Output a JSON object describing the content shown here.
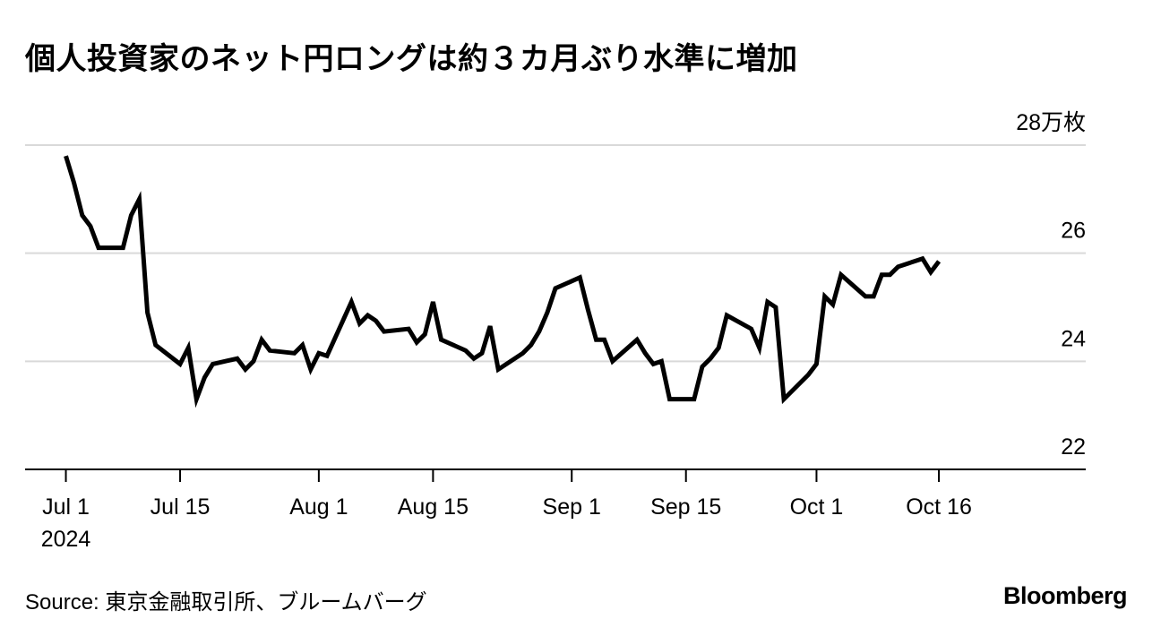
{
  "title": "個人投資家のネット円ロングは約３カ月ぶり水準に増加",
  "source": "Source: 東京金融取引所、ブルームバーグ",
  "logo": "Bloomberg",
  "colors": {
    "line": "#000000",
    "grid": "#d9d9d9",
    "axis": "#000000",
    "background": "#ffffff"
  },
  "chart_data": {
    "type": "line",
    "title": "個人投資家のネット円ロングは約３カ月ぶり水準に増加",
    "xlabel": "",
    "ylabel": "",
    "y_unit": "万枚",
    "ylim": [
      22,
      28
    ],
    "xlim": [
      "2024-06-26",
      "2024-11-03"
    ],
    "grid": "horizontal",
    "y_axis_position": "right",
    "legend": "none",
    "y_ticks": [
      {
        "value": 28,
        "label": "28万枚"
      },
      {
        "value": 26,
        "label": "26"
      },
      {
        "value": 24,
        "label": "24"
      },
      {
        "value": 22,
        "label": "22"
      }
    ],
    "x_ticks": [
      {
        "date": "2024-07-01",
        "label": "Jul 1",
        "sublabel": "2024"
      },
      {
        "date": "2024-07-15",
        "label": "Jul 15",
        "sublabel": ""
      },
      {
        "date": "2024-08-01",
        "label": "Aug 1",
        "sublabel": ""
      },
      {
        "date": "2024-08-15",
        "label": "Aug 15",
        "sublabel": ""
      },
      {
        "date": "2024-09-01",
        "label": "Sep 1",
        "sublabel": ""
      },
      {
        "date": "2024-09-15",
        "label": "Sep 15",
        "sublabel": ""
      },
      {
        "date": "2024-10-01",
        "label": "Oct 1",
        "sublabel": ""
      },
      {
        "date": "2024-10-16",
        "label": "Oct 16",
        "sublabel": ""
      }
    ],
    "series": [
      {
        "points": [
          [
            "2024-07-01",
            27.8
          ],
          [
            "2024-07-02",
            27.3
          ],
          [
            "2024-07-03",
            26.7
          ],
          [
            "2024-07-04",
            26.5
          ],
          [
            "2024-07-05",
            26.1
          ],
          [
            "2024-07-08",
            26.1
          ],
          [
            "2024-07-09",
            26.7
          ],
          [
            "2024-07-10",
            27.0
          ],
          [
            "2024-07-11",
            24.9
          ],
          [
            "2024-07-12",
            24.3
          ],
          [
            "2024-07-15",
            23.95
          ],
          [
            "2024-07-16",
            24.25
          ],
          [
            "2024-07-17",
            23.3
          ],
          [
            "2024-07-18",
            23.7
          ],
          [
            "2024-07-19",
            23.95
          ],
          [
            "2024-07-22",
            24.05
          ],
          [
            "2024-07-23",
            23.85
          ],
          [
            "2024-07-24",
            24.0
          ],
          [
            "2024-07-25",
            24.4
          ],
          [
            "2024-07-26",
            24.2
          ],
          [
            "2024-07-29",
            24.15
          ],
          [
            "2024-07-30",
            24.3
          ],
          [
            "2024-07-31",
            23.85
          ],
          [
            "2024-08-01",
            24.15
          ],
          [
            "2024-08-02",
            24.1
          ],
          [
            "2024-08-05",
            25.1
          ],
          [
            "2024-08-06",
            24.7
          ],
          [
            "2024-08-07",
            24.85
          ],
          [
            "2024-08-08",
            24.75
          ],
          [
            "2024-08-09",
            24.55
          ],
          [
            "2024-08-12",
            24.6
          ],
          [
            "2024-08-13",
            24.35
          ],
          [
            "2024-08-14",
            24.5
          ],
          [
            "2024-08-15",
            25.1
          ],
          [
            "2024-08-16",
            24.4
          ],
          [
            "2024-08-19",
            24.2
          ],
          [
            "2024-08-20",
            24.05
          ],
          [
            "2024-08-21",
            24.15
          ],
          [
            "2024-08-22",
            24.65
          ],
          [
            "2024-08-23",
            23.85
          ],
          [
            "2024-08-26",
            24.15
          ],
          [
            "2024-08-27",
            24.3
          ],
          [
            "2024-08-28",
            24.55
          ],
          [
            "2024-08-29",
            24.9
          ],
          [
            "2024-08-30",
            25.35
          ],
          [
            "2024-09-02",
            25.55
          ],
          [
            "2024-09-03",
            24.95
          ],
          [
            "2024-09-04",
            24.4
          ],
          [
            "2024-09-05",
            24.4
          ],
          [
            "2024-09-06",
            24.0
          ],
          [
            "2024-09-09",
            24.4
          ],
          [
            "2024-09-10",
            24.15
          ],
          [
            "2024-09-11",
            23.95
          ],
          [
            "2024-09-12",
            24.0
          ],
          [
            "2024-09-13",
            23.3
          ],
          [
            "2024-09-16",
            23.3
          ],
          [
            "2024-09-17",
            23.9
          ],
          [
            "2024-09-18",
            24.05
          ],
          [
            "2024-09-19",
            24.25
          ],
          [
            "2024-09-20",
            24.85
          ],
          [
            "2024-09-23",
            24.6
          ],
          [
            "2024-09-24",
            24.25
          ],
          [
            "2024-09-25",
            25.1
          ],
          [
            "2024-09-26",
            25.0
          ],
          [
            "2024-09-27",
            23.3
          ],
          [
            "2024-09-30",
            23.75
          ],
          [
            "2024-10-01",
            23.95
          ],
          [
            "2024-10-02",
            25.2
          ],
          [
            "2024-10-03",
            25.05
          ],
          [
            "2024-10-04",
            25.6
          ],
          [
            "2024-10-07",
            25.2
          ],
          [
            "2024-10-08",
            25.2
          ],
          [
            "2024-10-09",
            25.6
          ],
          [
            "2024-10-10",
            25.6
          ],
          [
            "2024-10-11",
            25.75
          ],
          [
            "2024-10-14",
            25.9
          ],
          [
            "2024-10-15",
            25.65
          ],
          [
            "2024-10-16",
            25.85
          ]
        ]
      }
    ]
  }
}
